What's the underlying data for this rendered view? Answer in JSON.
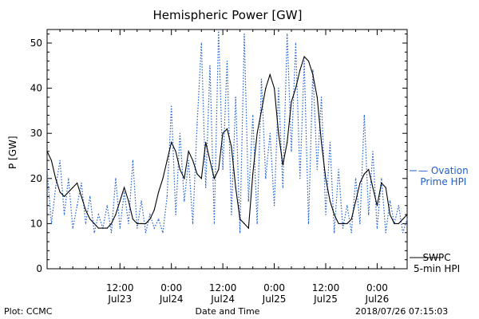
{
  "chart_data": {
    "type": "line",
    "title": "Hemispheric Power [GW]",
    "ylabel": "P [GW]",
    "xlabel": "Date and Time",
    "ylim": [
      0,
      53
    ],
    "yticks": [
      0,
      10,
      20,
      30,
      40,
      50
    ],
    "xlim": [
      "2018-07-22T19:00",
      "2018-07-26T07:00"
    ],
    "xtick_labels": [
      {
        "t": "2018-07-23T12:00",
        "line1": "12:00",
        "line2": "Jul23"
      },
      {
        "t": "2018-07-24T00:00",
        "line1": "0:00",
        "line2": "Jul24"
      },
      {
        "t": "2018-07-24T12:00",
        "line1": "12:00",
        "line2": "Jul24"
      },
      {
        "t": "2018-07-25T00:00",
        "line1": "0:00",
        "line2": "Jul25"
      },
      {
        "t": "2018-07-25T12:00",
        "line1": "12:00",
        "line2": "Jul25"
      },
      {
        "t": "2018-07-26T00:00",
        "line1": "0:00",
        "line2": "Jul26"
      }
    ],
    "series": [
      {
        "name": "Ovation Prime HPI",
        "legend_label": "— Ovation\nPrime HPI",
        "style": "dotted",
        "color": "#1f5fd0",
        "points": [
          [
            "2018-07-22T19:00",
            22
          ],
          [
            "2018-07-22T20:00",
            10
          ],
          [
            "2018-07-22T21:00",
            18
          ],
          [
            "2018-07-22T22:00",
            24
          ],
          [
            "2018-07-22T23:00",
            12
          ],
          [
            "2018-07-23T00:00",
            20
          ],
          [
            "2018-07-23T01:00",
            9
          ],
          [
            "2018-07-23T02:00",
            14
          ],
          [
            "2018-07-23T03:00",
            19
          ],
          [
            "2018-07-23T04:00",
            10
          ],
          [
            "2018-07-23T05:00",
            16
          ],
          [
            "2018-07-23T06:00",
            8
          ],
          [
            "2018-07-23T07:00",
            12
          ],
          [
            "2018-07-23T08:00",
            9
          ],
          [
            "2018-07-23T09:00",
            14
          ],
          [
            "2018-07-23T10:00",
            8
          ],
          [
            "2018-07-23T11:00",
            20
          ],
          [
            "2018-07-23T12:00",
            9
          ],
          [
            "2018-07-23T13:00",
            17
          ],
          [
            "2018-07-23T14:00",
            10
          ],
          [
            "2018-07-23T15:00",
            24
          ],
          [
            "2018-07-23T16:00",
            9
          ],
          [
            "2018-07-23T17:00",
            15
          ],
          [
            "2018-07-23T18:00",
            8
          ],
          [
            "2018-07-23T19:00",
            12
          ],
          [
            "2018-07-23T20:00",
            9
          ],
          [
            "2018-07-23T21:00",
            11
          ],
          [
            "2018-07-23T22:00",
            8
          ],
          [
            "2018-07-23T23:00",
            16
          ],
          [
            "2018-07-24T00:00",
            36
          ],
          [
            "2018-07-24T01:00",
            12
          ],
          [
            "2018-07-24T02:00",
            30
          ],
          [
            "2018-07-24T03:00",
            15
          ],
          [
            "2018-07-24T04:00",
            24
          ],
          [
            "2018-07-24T05:00",
            10
          ],
          [
            "2018-07-24T06:00",
            32
          ],
          [
            "2018-07-24T07:00",
            50
          ],
          [
            "2018-07-24T08:00",
            18
          ],
          [
            "2018-07-24T09:00",
            45
          ],
          [
            "2018-07-24T10:00",
            10
          ],
          [
            "2018-07-24T11:00",
            53
          ],
          [
            "2018-07-24T12:00",
            22
          ],
          [
            "2018-07-24T13:00",
            46
          ],
          [
            "2018-07-24T14:00",
            12
          ],
          [
            "2018-07-24T15:00",
            38
          ],
          [
            "2018-07-24T16:00",
            8
          ],
          [
            "2018-07-24T17:00",
            52
          ],
          [
            "2018-07-24T18:00",
            15
          ],
          [
            "2018-07-24T19:00",
            34
          ],
          [
            "2018-07-24T20:00",
            10
          ],
          [
            "2018-07-24T21:00",
            42
          ],
          [
            "2018-07-24T22:00",
            20
          ],
          [
            "2018-07-24T23:00",
            30
          ],
          [
            "2018-07-25T00:00",
            14
          ],
          [
            "2018-07-25T01:00",
            40
          ],
          [
            "2018-07-25T02:00",
            18
          ],
          [
            "2018-07-25T03:00",
            52
          ],
          [
            "2018-07-25T04:00",
            26
          ],
          [
            "2018-07-25T05:00",
            50
          ],
          [
            "2018-07-25T06:00",
            20
          ],
          [
            "2018-07-25T07:00",
            46
          ],
          [
            "2018-07-25T08:00",
            10
          ],
          [
            "2018-07-25T09:00",
            44
          ],
          [
            "2018-07-25T10:00",
            22
          ],
          [
            "2018-07-25T11:00",
            38
          ],
          [
            "2018-07-25T12:00",
            12
          ],
          [
            "2018-07-25T13:00",
            28
          ],
          [
            "2018-07-25T14:00",
            8
          ],
          [
            "2018-07-25T15:00",
            22
          ],
          [
            "2018-07-25T16:00",
            9
          ],
          [
            "2018-07-25T17:00",
            14
          ],
          [
            "2018-07-25T18:00",
            8
          ],
          [
            "2018-07-25T19:00",
            20
          ],
          [
            "2018-07-25T20:00",
            10
          ],
          [
            "2018-07-25T21:00",
            34
          ],
          [
            "2018-07-25T22:00",
            12
          ],
          [
            "2018-07-25T23:00",
            26
          ],
          [
            "2018-07-26T00:00",
            9
          ],
          [
            "2018-07-26T01:00",
            20
          ],
          [
            "2018-07-26T02:00",
            8
          ],
          [
            "2018-07-26T03:00",
            15
          ],
          [
            "2018-07-26T04:00",
            10
          ],
          [
            "2018-07-26T05:00",
            14
          ],
          [
            "2018-07-26T06:00",
            8
          ],
          [
            "2018-07-26T07:00",
            11
          ]
        ]
      },
      {
        "name": "SWPC 5-min HPI",
        "legend_label": "SWPC\n5-min HPI",
        "style": "solid",
        "color": "#000000",
        "points": [
          [
            "2018-07-22T19:00",
            26
          ],
          [
            "2018-07-22T20:00",
            24
          ],
          [
            "2018-07-22T21:00",
            20
          ],
          [
            "2018-07-22T22:00",
            17
          ],
          [
            "2018-07-22T23:00",
            16
          ],
          [
            "2018-07-23T00:00",
            17
          ],
          [
            "2018-07-23T01:00",
            18
          ],
          [
            "2018-07-23T02:00",
            19
          ],
          [
            "2018-07-23T03:00",
            16
          ],
          [
            "2018-07-23T04:00",
            13
          ],
          [
            "2018-07-23T05:00",
            11
          ],
          [
            "2018-07-23T06:00",
            10
          ],
          [
            "2018-07-23T07:00",
            9
          ],
          [
            "2018-07-23T08:00",
            9
          ],
          [
            "2018-07-23T09:00",
            9
          ],
          [
            "2018-07-23T10:00",
            10
          ],
          [
            "2018-07-23T11:00",
            12
          ],
          [
            "2018-07-23T12:00",
            15
          ],
          [
            "2018-07-23T13:00",
            18
          ],
          [
            "2018-07-23T14:00",
            15
          ],
          [
            "2018-07-23T15:00",
            11
          ],
          [
            "2018-07-23T16:00",
            10
          ],
          [
            "2018-07-23T17:00",
            10
          ],
          [
            "2018-07-23T18:00",
            10
          ],
          [
            "2018-07-23T19:00",
            11
          ],
          [
            "2018-07-23T20:00",
            13
          ],
          [
            "2018-07-23T21:00",
            17
          ],
          [
            "2018-07-23T22:00",
            20
          ],
          [
            "2018-07-23T23:00",
            24
          ],
          [
            "2018-07-24T00:00",
            28
          ],
          [
            "2018-07-24T01:00",
            26
          ],
          [
            "2018-07-24T02:00",
            22
          ],
          [
            "2018-07-24T03:00",
            20
          ],
          [
            "2018-07-24T04:00",
            26
          ],
          [
            "2018-07-24T05:00",
            24
          ],
          [
            "2018-07-24T06:00",
            21
          ],
          [
            "2018-07-24T07:00",
            20
          ],
          [
            "2018-07-24T08:00",
            28
          ],
          [
            "2018-07-24T09:00",
            24
          ],
          [
            "2018-07-24T10:00",
            20
          ],
          [
            "2018-07-24T11:00",
            22
          ],
          [
            "2018-07-24T12:00",
            30
          ],
          [
            "2018-07-24T13:00",
            31
          ],
          [
            "2018-07-24T14:00",
            27
          ],
          [
            "2018-07-24T15:00",
            18
          ],
          [
            "2018-07-24T16:00",
            11
          ],
          [
            "2018-07-24T17:00",
            10
          ],
          [
            "2018-07-24T18:00",
            9
          ],
          [
            "2018-07-24T19:00",
            21
          ],
          [
            "2018-07-24T20:00",
            30
          ],
          [
            "2018-07-24T21:00",
            35
          ],
          [
            "2018-07-24T22:00",
            40
          ],
          [
            "2018-07-24T23:00",
            43
          ],
          [
            "2018-07-25T00:00",
            40
          ],
          [
            "2018-07-25T01:00",
            30
          ],
          [
            "2018-07-25T02:00",
            23
          ],
          [
            "2018-07-25T03:00",
            28
          ],
          [
            "2018-07-25T04:00",
            37
          ],
          [
            "2018-07-25T05:00",
            40
          ],
          [
            "2018-07-25T06:00",
            44
          ],
          [
            "2018-07-25T07:00",
            47
          ],
          [
            "2018-07-25T08:00",
            46
          ],
          [
            "2018-07-25T09:00",
            43
          ],
          [
            "2018-07-25T10:00",
            38
          ],
          [
            "2018-07-25T11:00",
            28
          ],
          [
            "2018-07-25T12:00",
            20
          ],
          [
            "2018-07-25T13:00",
            15
          ],
          [
            "2018-07-25T14:00",
            12
          ],
          [
            "2018-07-25T15:00",
            10
          ],
          [
            "2018-07-25T16:00",
            10
          ],
          [
            "2018-07-25T17:00",
            10
          ],
          [
            "2018-07-25T18:00",
            11
          ],
          [
            "2018-07-25T19:00",
            15
          ],
          [
            "2018-07-25T20:00",
            19
          ],
          [
            "2018-07-25T21:00",
            21
          ],
          [
            "2018-07-25T22:00",
            22
          ],
          [
            "2018-07-25T23:00",
            18
          ],
          [
            "2018-07-26T00:00",
            14
          ],
          [
            "2018-07-26T01:00",
            19
          ],
          [
            "2018-07-26T02:00",
            18
          ],
          [
            "2018-07-26T03:00",
            12
          ],
          [
            "2018-07-26T04:00",
            10
          ],
          [
            "2018-07-26T05:00",
            10
          ],
          [
            "2018-07-26T06:00",
            11
          ],
          [
            "2018-07-26T07:00",
            12
          ]
        ]
      }
    ],
    "grid": false
  },
  "footer": {
    "left": "Plot: CCMC",
    "center": "Date and Time",
    "right": "2018/07/26 07:15:03"
  }
}
